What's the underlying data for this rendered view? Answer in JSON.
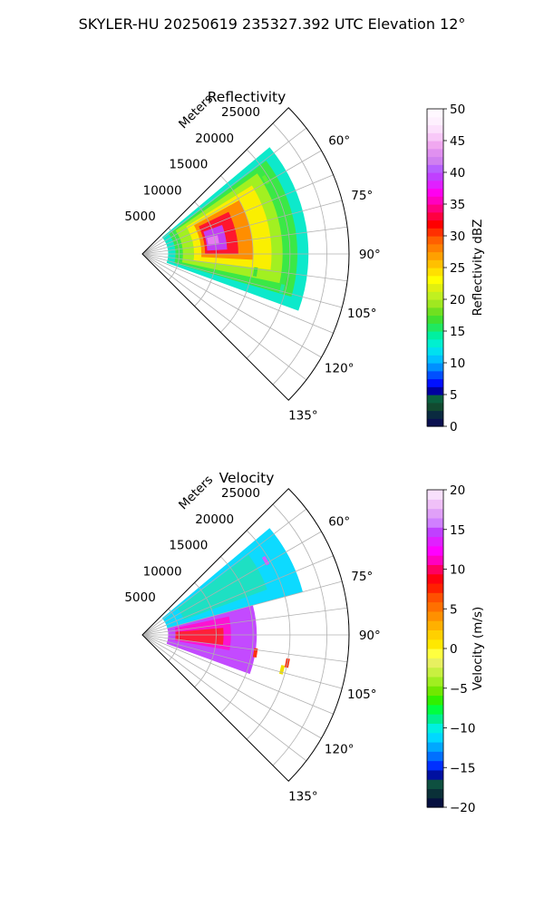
{
  "figure": {
    "suptitle": "SKYLER-HU  20250619  235327.392 UTC Elevation 12°"
  },
  "chart_data": [
    {
      "type": "heatmap",
      "projection": "polar-sector",
      "title": "Reflectivity",
      "radial_label": "Meters",
      "radial_ticks": [
        "5000",
        "10000",
        "15000",
        "20000",
        "25000"
      ],
      "rmax": 28000,
      "azimuth_ticks": [
        "60°",
        "75°",
        "90°",
        "105°",
        "120°",
        "135°"
      ],
      "azimuth_range_deg": [
        45,
        135
      ],
      "grid": true,
      "colorbar": {
        "label": "Reflectivity dBZ",
        "ticks": [
          "0",
          "5",
          "10",
          "15",
          "20",
          "25",
          "30",
          "35",
          "40",
          "45",
          "50"
        ],
        "range": [
          0,
          50
        ]
      },
      "bands": [
        {
          "value": 12,
          "color": "#00e8c8",
          "az": [
            50,
            110
          ],
          "r": [
            3500,
            22500
          ]
        },
        {
          "value": 17,
          "color": "#3ee83e",
          "az": [
            53,
            106
          ],
          "r": [
            4500,
            21000
          ]
        },
        {
          "value": 22,
          "color": "#a8f020",
          "az": [
            55,
            102
          ],
          "r": [
            5500,
            19000
          ]
        },
        {
          "value": 28,
          "color": "#ffee00",
          "az": [
            58,
            97
          ],
          "r": [
            7000,
            17500
          ]
        },
        {
          "value": 33,
          "color": "#ff8800",
          "az": [
            61,
            93
          ],
          "r": [
            8000,
            15000
          ]
        },
        {
          "value": 37,
          "color": "#ff1030",
          "az": [
            64,
            90
          ],
          "r": [
            8500,
            13000
          ]
        },
        {
          "value": 42,
          "color": "#c040ff",
          "az": [
            70,
            87
          ],
          "r": [
            8800,
            11500
          ]
        },
        {
          "value": 45,
          "color": "#e880f0",
          "az": [
            76,
            82
          ],
          "r": [
            9000,
            10500
          ]
        }
      ],
      "scatter_echoes": [
        {
          "value": 18,
          "color": "#40e040",
          "az": 101,
          "r": 20000
        },
        {
          "value": 18,
          "color": "#40e040",
          "az": 99,
          "r": 15500
        },
        {
          "value": 14,
          "color": "#20e8a0",
          "az": 104,
          "r": 19500
        },
        {
          "value": 20,
          "color": "#60f030",
          "az": 59,
          "r": 19500
        }
      ]
    },
    {
      "type": "heatmap",
      "projection": "polar-sector",
      "title": "Velocity",
      "radial_label": "Meters",
      "radial_ticks": [
        "5000",
        "10000",
        "15000",
        "20000",
        "25000"
      ],
      "rmax": 28000,
      "azimuth_ticks": [
        "60°",
        "75°",
        "90°",
        "105°",
        "120°",
        "135°"
      ],
      "azimuth_range_deg": [
        45,
        135
      ],
      "grid": true,
      "colorbar": {
        "label": "Velocity (m/s)",
        "ticks": [
          "−20",
          "−15",
          "−10",
          "−5",
          "0",
          "5",
          "10",
          "15",
          "20"
        ],
        "range": [
          -20,
          20
        ]
      },
      "bands": [
        {
          "value": -12,
          "color": "#00d8ff",
          "az": [
            50,
            75
          ],
          "r": [
            3500,
            22500
          ]
        },
        {
          "value": -9,
          "color": "#20e0c0",
          "az": [
            53,
            70
          ],
          "r": [
            6000,
            18000
          ]
        },
        {
          "value": 14,
          "color": "#c040ff",
          "az": [
            75,
            110
          ],
          "r": [
            3500,
            15500
          ]
        },
        {
          "value": 11,
          "color": "#ff10d0",
          "az": [
            78,
            100
          ],
          "r": [
            4500,
            12000
          ]
        },
        {
          "value": 8,
          "color": "#ff2030",
          "az": [
            85,
            97
          ],
          "r": [
            4500,
            11000
          ]
        }
      ],
      "scatter_echoes": [
        {
          "value": 8,
          "color": "#ff3010",
          "az": 101,
          "r": 20000
        },
        {
          "value": 8,
          "color": "#ff3010",
          "az": 99,
          "r": 15500
        },
        {
          "value": 2,
          "color": "#f0e000",
          "az": 104,
          "r": 19500
        },
        {
          "value": 16,
          "color": "#d060ff",
          "az": 59,
          "r": 19500
        }
      ]
    }
  ],
  "colormaps": {
    "reflectivity": [
      "#0a1050",
      "#0a2a40",
      "#124a30",
      "#0a6040",
      "#0000a0",
      "#0010ff",
      "#0050ff",
      "#0090ff",
      "#00c0ff",
      "#00e0f0",
      "#00f0d0",
      "#00f0a0",
      "#20e860",
      "#40e030",
      "#70e020",
      "#a0e820",
      "#c0f020",
      "#e0f010",
      "#ffff00",
      "#ffe000",
      "#ffc000",
      "#ffa000",
      "#ff8000",
      "#ff6000",
      "#ff3000",
      "#ff0000",
      "#ff0040",
      "#ff0080",
      "#ff00c0",
      "#ff00f0",
      "#e020ff",
      "#c040ff",
      "#b860ff",
      "#d080f0",
      "#e090f0",
      "#f0a8f0",
      "#f8c8f8",
      "#fce0fc",
      "#fef0fe",
      "#fff8ff"
    ],
    "velocity": [
      "#061040",
      "#0a3038",
      "#0e5040",
      "#0010a0",
      "#0030ff",
      "#0070ff",
      "#00a8ff",
      "#00d8ff",
      "#00f0e0",
      "#00f090",
      "#00ff40",
      "#30f000",
      "#70e800",
      "#a0ee20",
      "#c8f040",
      "#e8f060",
      "#ffff40",
      "#ffe800",
      "#ffd000",
      "#ffb000",
      "#ff9000",
      "#ff7000",
      "#ff5000",
      "#ff2000",
      "#ff0010",
      "#ff0060",
      "#ff00c0",
      "#ff00ff",
      "#e020ff",
      "#c040ff",
      "#d080ff",
      "#e0a0f8",
      "#f0c0f8",
      "#f8e0fc"
    ]
  }
}
